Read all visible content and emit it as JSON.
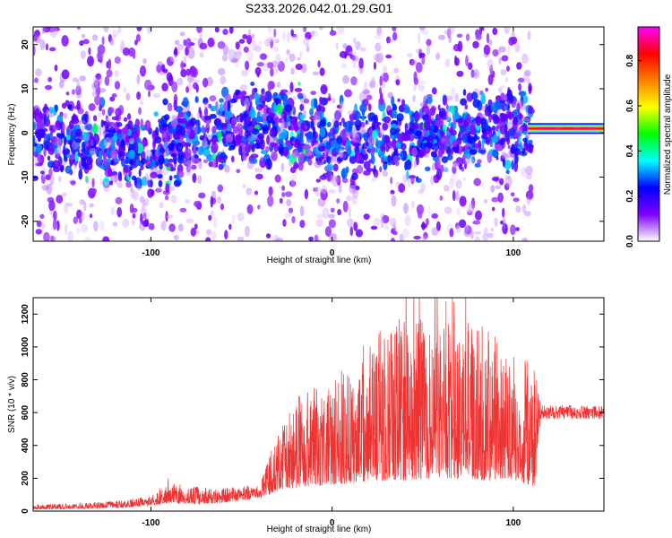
{
  "title": "S233.2026.042.01.29.G01",
  "chart_data": [
    {
      "type": "heatmap",
      "xlabel": "Height of straight line (km)",
      "ylabel": "Frequency (Hz)",
      "xlim": [
        -165,
        150
      ],
      "ylim": [
        -24.5,
        24
      ],
      "x_ticks": [
        -100,
        0,
        100
      ],
      "y_ticks": [
        -20,
        -10,
        0,
        10,
        20
      ],
      "colorbar": {
        "label": "Normalized spectral amplitude",
        "range": [
          0.0,
          0.95
        ],
        "ticks": [
          0.0,
          0.2,
          0.4,
          0.6,
          0.8
        ],
        "colormap": [
          "#ffffff",
          "#7f00ff",
          "#0000ff",
          "#00ffff",
          "#00ff00",
          "#ffff00",
          "#ff8000",
          "#ff0000",
          "#ff00ff"
        ]
      },
      "features": {
        "line_start_km": 110,
        "line_frequency_hz": 1,
        "line_amplitude": 0.85,
        "noise_band_center_hz": [
          [
            -165,
            -1
          ],
          [
            -100,
            -4
          ],
          [
            -40,
            2
          ],
          [
            0,
            -2
          ],
          [
            40,
            -1
          ],
          [
            100,
            1
          ]
        ]
      }
    },
    {
      "type": "line",
      "xlabel": "Height of straight line (km)",
      "ylabel": "SNR (10 * v/v)",
      "xlim": [
        -165,
        150
      ],
      "ylim": [
        0,
        1300
      ],
      "x_ticks": [
        -100,
        0,
        100
      ],
      "y_ticks": [
        0,
        200,
        400,
        600,
        800,
        1000,
        1200
      ],
      "color": "#ee3333",
      "envelope": {
        "x": [
          -165,
          -140,
          -120,
          -100,
          -90,
          -80,
          -60,
          -40,
          -30,
          -20,
          0,
          20,
          40,
          60,
          80,
          100,
          112,
          115,
          150
        ],
        "low": [
          10,
          15,
          20,
          30,
          50,
          40,
          50,
          80,
          120,
          140,
          160,
          180,
          190,
          200,
          190,
          190,
          150,
          560,
          560
        ],
        "high": [
          40,
          50,
          60,
          90,
          210,
          150,
          140,
          170,
          480,
          700,
          800,
          1050,
          1200,
          1150,
          1180,
          950,
          900,
          650,
          640
        ]
      }
    }
  ]
}
